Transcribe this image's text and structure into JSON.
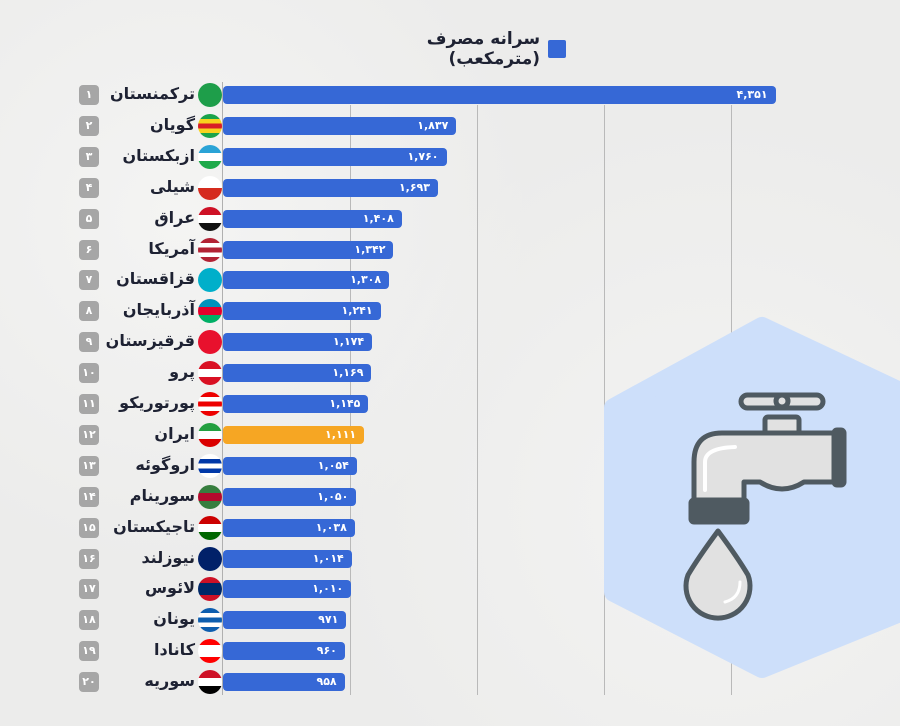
{
  "chart_data": {
    "type": "bar",
    "orientation": "horizontal",
    "legend": {
      "label": "سرانه مصرف (مترمکعب)",
      "placement": "top"
    },
    "xlim": [
      0,
      4400
    ],
    "grid": true,
    "colors": {
      "default": "#3668d6",
      "highlight": "#f6a623"
    },
    "rows": [
      {
        "rank": "۱",
        "name": "ترکمنستان",
        "value": 4351,
        "label": "۴,۳۵۱",
        "flag_colors": [
          "#1e9e4a",
          "#1e9e4a"
        ]
      },
      {
        "rank": "۲",
        "name": "گویان",
        "value": 1837,
        "label": "۱,۸۳۷",
        "flag_colors": [
          "#1aa34a",
          "#f7d21e",
          "#d81e26",
          "#f7d21e",
          "#1aa34a"
        ]
      },
      {
        "rank": "۳",
        "name": "ازبکستان",
        "value": 1760,
        "label": "۱,۷۶۰",
        "flag_colors": [
          "#2aa3d6",
          "#ffffff",
          "#1eaa4a"
        ]
      },
      {
        "rank": "۴",
        "name": "شیلی",
        "value": 1693,
        "label": "۱,۶۹۳",
        "flag_colors": [
          "#ffffff",
          "#d52b1e"
        ]
      },
      {
        "rank": "۵",
        "name": "عراق",
        "value": 1408,
        "label": "۱,۴۰۸",
        "flag_colors": [
          "#ce1126",
          "#ffffff",
          "#111111"
        ]
      },
      {
        "rank": "۶",
        "name": "آمریکا",
        "value": 1342,
        "label": "۱,۳۴۲",
        "flag_colors": [
          "#b22234",
          "#ffffff",
          "#b22234",
          "#ffffff",
          "#b22234"
        ]
      },
      {
        "rank": "۷",
        "name": "قزاقستان",
        "value": 1308,
        "label": "۱,۳۰۸",
        "flag_colors": [
          "#00afca",
          "#00afca"
        ]
      },
      {
        "rank": "۸",
        "name": "آذربایجان",
        "value": 1241,
        "label": "۱,۲۴۱",
        "flag_colors": [
          "#0092bc",
          "#e4002b",
          "#00af66"
        ]
      },
      {
        "rank": "۹",
        "name": "قرقیزستان",
        "value": 1174,
        "label": "۱,۱۷۴",
        "flag_colors": [
          "#e8112d",
          "#e8112d"
        ]
      },
      {
        "rank": "۱۰",
        "name": "پرو",
        "value": 1169,
        "label": "۱,۱۶۹",
        "flag_colors": [
          "#d91023",
          "#ffffff",
          "#d91023"
        ]
      },
      {
        "rank": "۱۱",
        "name": "پورتوریکو",
        "value": 1145,
        "label": "۱,۱۴۵",
        "flag_colors": [
          "#ed0000",
          "#ffffff",
          "#ed0000",
          "#ffffff",
          "#ed0000"
        ]
      },
      {
        "rank": "۱۲",
        "name": "ایران",
        "value": 1111,
        "label": "۱,۱۱۱",
        "highlight": true,
        "flag_colors": [
          "#239f40",
          "#ffffff",
          "#da0000"
        ]
      },
      {
        "rank": "۱۳",
        "name": "اروگوئه",
        "value": 1054,
        "label": "۱,۰۵۴",
        "flag_colors": [
          "#ffffff",
          "#0038a8",
          "#ffffff",
          "#0038a8",
          "#ffffff"
        ]
      },
      {
        "rank": "۱۴",
        "name": "سورینام",
        "value": 1050,
        "label": "۱,۰۵۰",
        "flag_colors": [
          "#377e3f",
          "#b40a2d",
          "#377e3f"
        ]
      },
      {
        "rank": "۱۵",
        "name": "تاجیکستان",
        "value": 1038,
        "label": "۱,۰۳۸",
        "flag_colors": [
          "#cc0000",
          "#ffffff",
          "#006600"
        ]
      },
      {
        "rank": "۱۶",
        "name": "نیوزلند",
        "value": 1014,
        "label": "۱,۰۱۴",
        "flag_colors": [
          "#012169",
          "#012169"
        ]
      },
      {
        "rank": "۱۷",
        "name": "لائوس",
        "value": 1010,
        "label": "۱,۰۱۰",
        "flag_colors": [
          "#ce1126",
          "#002868",
          "#002868",
          "#ce1126"
        ]
      },
      {
        "rank": "۱۸",
        "name": "یونان",
        "value": 971,
        "label": "۹۷۱",
        "flag_colors": [
          "#0d5eaf",
          "#ffffff",
          "#0d5eaf",
          "#ffffff",
          "#0d5eaf"
        ]
      },
      {
        "rank": "۱۹",
        "name": "کانادا",
        "value": 960,
        "label": "۹۶۰",
        "flag_colors": [
          "#ff0000",
          "#ffffff",
          "#ffffff",
          "#ff0000"
        ]
      },
      {
        "rank": "۲۰",
        "name": "سوریه",
        "value": 958,
        "label": "۹۵۸",
        "flag_colors": [
          "#ce1126",
          "#ffffff",
          "#000000"
        ]
      }
    ]
  },
  "illustration": {
    "icon": "faucet-with-drop-icon",
    "background": "#cddffa"
  }
}
